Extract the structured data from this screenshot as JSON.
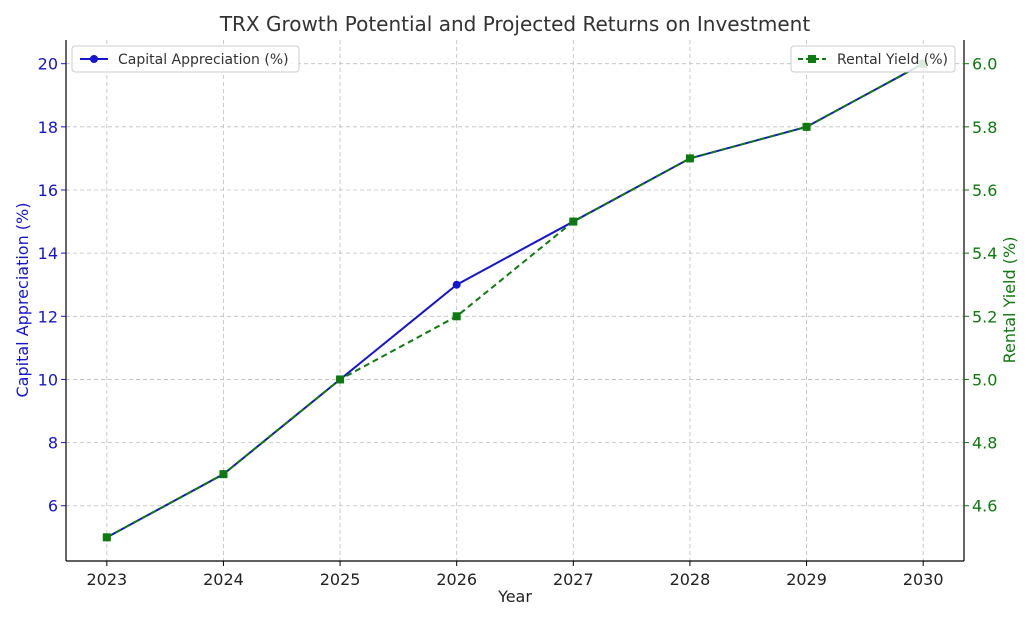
{
  "chart_data": {
    "type": "line",
    "title": "TRX Growth Potential and Projected Returns on Investment",
    "xlabel": "Year",
    "categories": [
      "2023",
      "2024",
      "2025",
      "2026",
      "2027",
      "2028",
      "2029",
      "2030"
    ],
    "grid": true,
    "series": [
      {
        "name": "Capital Appreciation (%)",
        "axis": "left",
        "color": "#1515d0",
        "marker": "circle",
        "line_style": "solid",
        "values": [
          5,
          7,
          10,
          13,
          15,
          17,
          18,
          20
        ]
      },
      {
        "name": "Rental Yield (%)",
        "axis": "right",
        "color": "#0c7a0c",
        "marker": "square",
        "line_style": "dashed",
        "values": [
          4.5,
          4.7,
          5.0,
          5.2,
          5.5,
          5.7,
          5.8,
          6.0
        ]
      }
    ],
    "y_left": {
      "label": "Capital Appreciation (%)",
      "range": [
        4.25,
        20.75
      ],
      "ticks": [
        "6",
        "8",
        "10",
        "12",
        "14",
        "16",
        "18",
        "20"
      ],
      "color": "#1515d0"
    },
    "y_right": {
      "label": "Rental Yield (%)",
      "range": [
        4.425,
        6.075
      ],
      "ticks": [
        "4.6",
        "4.8",
        "5.0",
        "5.2",
        "5.4",
        "5.6",
        "5.8",
        "6.0"
      ],
      "color": "#0c7a0c"
    },
    "legends": [
      {
        "series": "Capital Appreciation (%)",
        "placement": "top-left"
      },
      {
        "series": "Rental Yield (%)",
        "placement": "top-right"
      }
    ]
  }
}
